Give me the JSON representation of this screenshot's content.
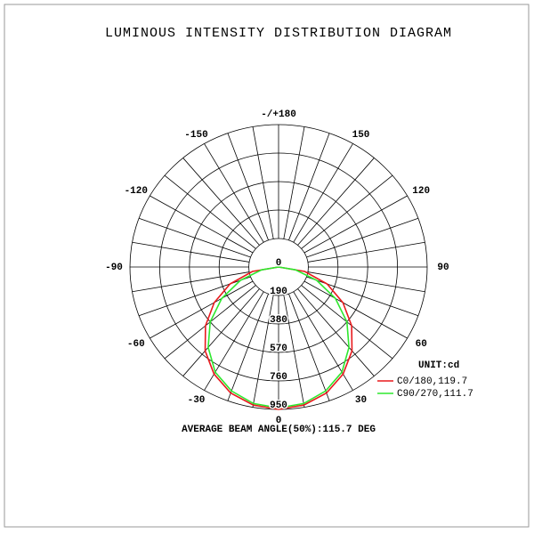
{
  "chart_data": {
    "type": "polar",
    "title": "LUMINOUS INTENSITY DISTRIBUTION DIAGRAM",
    "footer": "AVERAGE BEAM ANGLE(50%):115.7 DEG",
    "unit_label": "UNIT:cd",
    "angles": [
      -90,
      -80,
      -70,
      -60,
      -50,
      -40,
      -30,
      -20,
      -10,
      0,
      10,
      20,
      30,
      40,
      50,
      60,
      70,
      80,
      90
    ],
    "series": [
      {
        "name": "C0/180,119.7",
        "color": "#e8191c",
        "values": [
          0,
          170,
          330,
          475,
          610,
          730,
          825,
          895,
          935,
          950,
          935,
          895,
          825,
          730,
          610,
          475,
          330,
          170,
          0
        ]
      },
      {
        "name": "C90/270,111.7",
        "color": "#2ee82e",
        "values": [
          0,
          110,
          260,
          420,
          570,
          700,
          810,
          880,
          925,
          940,
          925,
          880,
          810,
          700,
          570,
          420,
          260,
          110,
          0
        ]
      }
    ],
    "rlim": [
      0,
      950
    ],
    "rticks": [
      0,
      190,
      380,
      570,
      760,
      950
    ],
    "angle_ticks": [
      -150,
      -120,
      -90,
      -60,
      -30,
      0,
      30,
      60,
      90,
      120,
      150,
      {
        "value": 180,
        "label": "-/+180"
      }
    ]
  }
}
